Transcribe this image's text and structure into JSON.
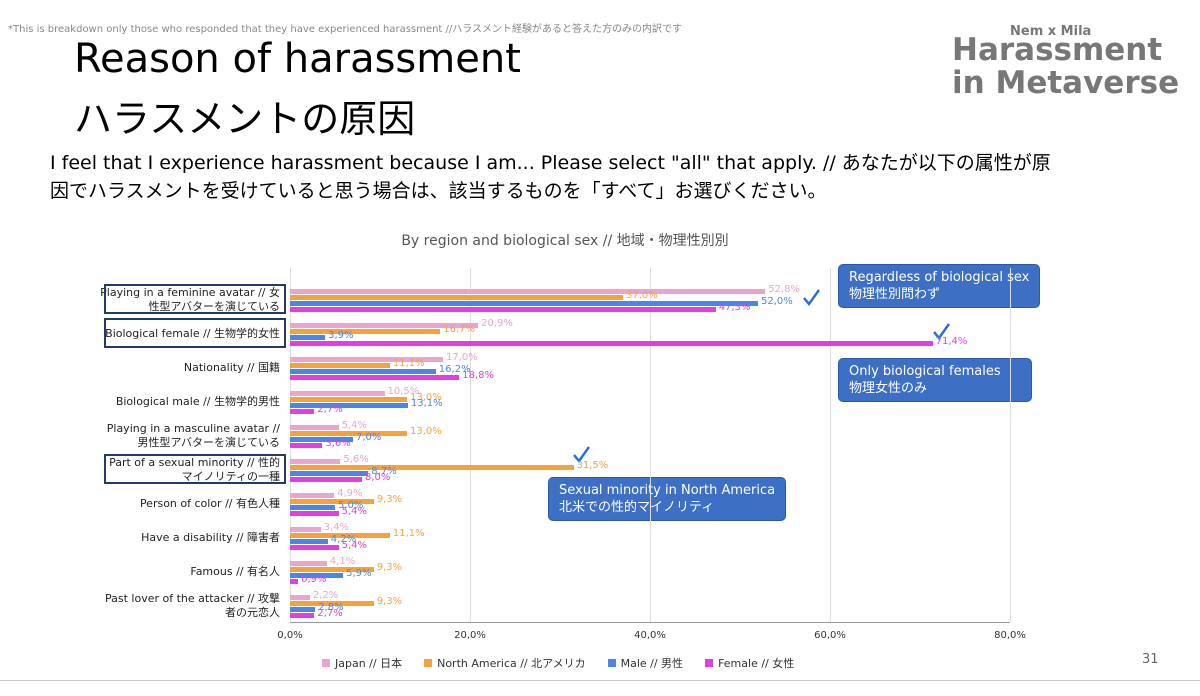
{
  "note": "*This is breakdown only those who responded that they have experienced harassment //ハラスメント経験があると答えた方のみの内訳です",
  "title_lines": [
    "Reason of harassment",
    "ハラスメントの原因"
  ],
  "logo": {
    "small": "Nem x Mila",
    "lines": [
      "Harassment",
      "in Metaverse"
    ]
  },
  "question_lines": [
    "I feel that I experience harassment because I am... Please select \"all\" that apply.  // あなたが以下の属性が原",
    "因でハラスメントを受けていると思う場合は、該当するものを「すべて」お選びください。"
  ],
  "annotations": [
    {
      "lines": [
        "Regardless of biological sex",
        "物理性別問わず"
      ]
    },
    {
      "lines": [
        "Only biological females",
        "物理女性のみ"
      ]
    },
    {
      "lines": [
        "Sexual minority in North America",
        "北米での性的マイノリティ"
      ]
    }
  ],
  "page_number": "31",
  "chart_data": {
    "type": "hbar",
    "title": "By region and biological sex // 地域・物理性別別",
    "categories": [
      "Playing in a feminine avatar // 女性型アバターを演じている",
      "Biological female // 生物学的女性",
      "Nationality // 国籍",
      "Biological male // 生物学的男性",
      "Playing in a masculine avatar // 男性型アバターを演じている",
      "Part of a sexual minority // 性的マイノリティの一種",
      "Person of color // 有色人種",
      "Have a disability // 障害者",
      "Famous // 有名人",
      "Past lover of the attacker // 攻撃者の元恋人"
    ],
    "series": [
      {
        "name": "Japan // 日本",
        "color": "#eba3cf",
        "values": [
          52.8,
          20.9,
          17.0,
          10.5,
          5.4,
          5.6,
          4.9,
          3.4,
          4.1,
          2.2
        ],
        "value_labels": [
          "52,8%",
          "20,9%",
          "17,0%",
          "10,5%",
          "5,4%",
          "5,6%",
          "4,9%",
          "3,4%",
          "4,1%",
          "2,2%"
        ]
      },
      {
        "name": "North America // 北アメリカ",
        "color": "#f5a13c",
        "values": [
          37.0,
          16.7,
          11.1,
          13.0,
          13.0,
          31.5,
          9.3,
          11.1,
          9.3,
          9.3
        ],
        "value_labels": [
          "37,0%",
          "16,7%",
          "11,1%",
          "13,0%",
          "13,0%",
          "31,5%",
          "9,3%",
          "11,1%",
          "9,3%",
          "9,3%"
        ]
      },
      {
        "name": "Male // 男性",
        "color": "#4a86e8",
        "values": [
          52.0,
          3.9,
          16.2,
          13.1,
          7.0,
          8.7,
          5.0,
          4.2,
          5.9,
          2.8
        ],
        "value_labels": [
          "52,0%",
          "3,9%",
          "16,2%",
          "13,1%",
          "7,0%",
          "8,7%",
          "5,0%",
          "4,2%",
          "5,9%",
          "2,8%"
        ]
      },
      {
        "name": "Female // 女性",
        "color": "#e23ee3",
        "values": [
          47.3,
          71.4,
          18.8,
          2.7,
          3.6,
          8.0,
          5.4,
          5.4,
          0.9,
          2.7
        ],
        "value_labels": [
          "47,3%",
          "71,4%",
          "18,8%",
          "2,7%",
          "3,6%",
          "8,0%",
          "5,4%",
          "5,4%",
          "0,9%",
          "2,7%"
        ]
      }
    ],
    "xlim": [
      0,
      80
    ],
    "xticks": [
      {
        "value": 0,
        "label": "0,0%"
      },
      {
        "value": 20,
        "label": "20,0%"
      },
      {
        "value": 40,
        "label": "40,0%"
      },
      {
        "value": 60,
        "label": "60,0%"
      },
      {
        "value": 80,
        "label": "80,0%"
      }
    ],
    "grid": true,
    "legend": "bottom"
  }
}
